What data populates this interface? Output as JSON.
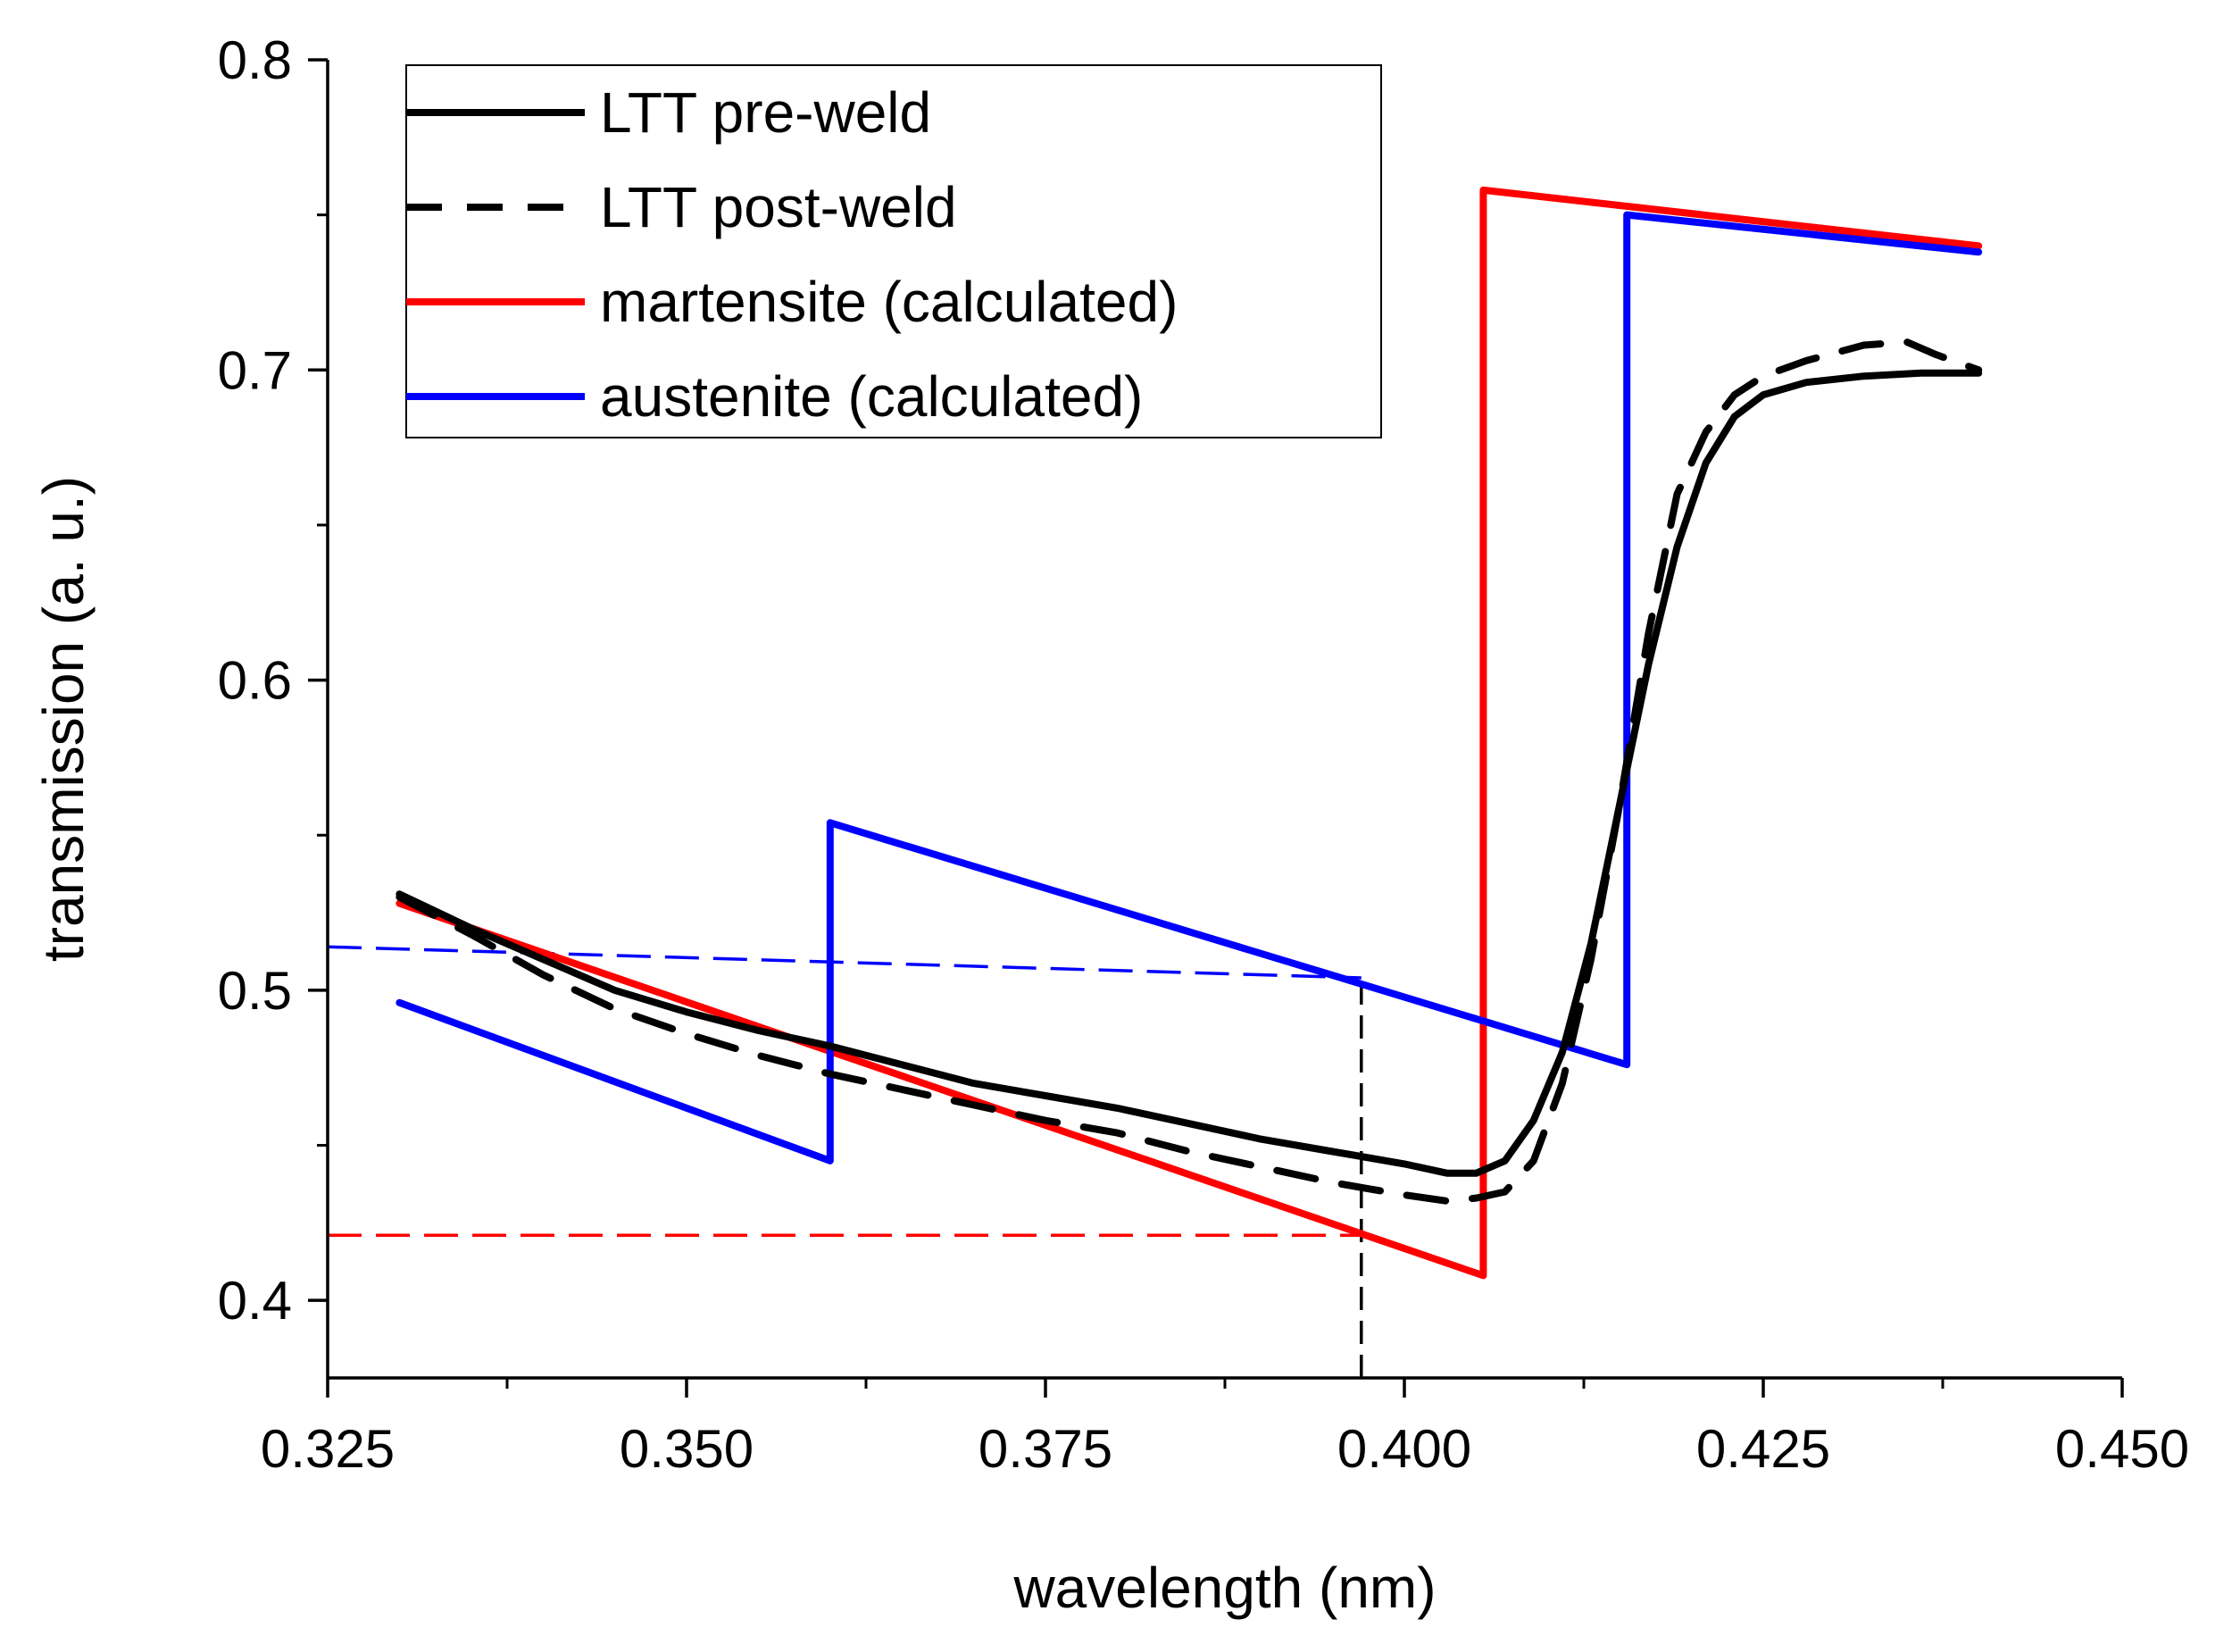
{
  "chart_data": {
    "type": "line",
    "xlabel": "wavelength (nm)",
    "ylabel": "transmission (a. u.)",
    "xlim": [
      0.325,
      0.45
    ],
    "ylim": [
      0.375,
      0.8
    ],
    "xticks": [
      0.325,
      0.35,
      0.375,
      0.4,
      0.425,
      0.45
    ],
    "xtick_labels": [
      "0.325",
      "0.350",
      "0.375",
      "0.400",
      "0.425",
      "0.450"
    ],
    "yticks": [
      0.4,
      0.5,
      0.6,
      0.7,
      0.8
    ],
    "ytick_labels": [
      "0.4",
      "0.5",
      "0.6",
      "0.7",
      "0.8"
    ],
    "legend_position": "top-left",
    "series": [
      {
        "name": "LTT pre-weld",
        "color": "#000000",
        "style": "solid",
        "x": [
          0.33,
          0.335,
          0.34,
          0.345,
          0.35,
          0.355,
          0.36,
          0.365,
          0.37,
          0.375,
          0.38,
          0.385,
          0.39,
          0.395,
          0.4,
          0.403,
          0.405,
          0.407,
          0.409,
          0.411,
          0.413,
          0.415,
          0.417,
          0.419,
          0.421,
          0.423,
          0.425,
          0.428,
          0.432,
          0.436,
          0.44
        ],
        "y": [
          0.531,
          0.52,
          0.51,
          0.5,
          0.493,
          0.487,
          0.482,
          0.476,
          0.47,
          0.466,
          0.462,
          0.457,
          0.452,
          0.448,
          0.444,
          0.441,
          0.441,
          0.445,
          0.458,
          0.48,
          0.515,
          0.56,
          0.605,
          0.643,
          0.67,
          0.685,
          0.692,
          0.696,
          0.698,
          0.699,
          0.699
        ]
      },
      {
        "name": "LTT post-weld",
        "color": "#000000",
        "style": "dashed",
        "x": [
          0.33,
          0.335,
          0.34,
          0.345,
          0.35,
          0.355,
          0.36,
          0.365,
          0.37,
          0.375,
          0.38,
          0.385,
          0.39,
          0.395,
          0.4,
          0.403,
          0.405,
          0.407,
          0.409,
          0.411,
          0.413,
          0.415,
          0.417,
          0.419,
          0.421,
          0.423,
          0.425,
          0.428,
          0.432,
          0.435,
          0.437,
          0.44
        ],
        "y": [
          0.53,
          0.518,
          0.505,
          0.494,
          0.486,
          0.479,
          0.473,
          0.468,
          0.463,
          0.458,
          0.454,
          0.448,
          0.443,
          0.438,
          0.434,
          0.432,
          0.433,
          0.435,
          0.445,
          0.47,
          0.51,
          0.56,
          0.615,
          0.66,
          0.68,
          0.692,
          0.698,
          0.703,
          0.708,
          0.709,
          0.705,
          0.7
        ]
      },
      {
        "name": "martensite (calculated)",
        "color": "#ff0000",
        "style": "solid",
        "x": [
          0.33,
          0.4055,
          0.4055,
          0.44
        ],
        "y": [
          0.528,
          0.408,
          0.758,
          0.74
        ]
      },
      {
        "name": "austenite (calculated)",
        "color": "#0000ff",
        "style": "solid",
        "x": [
          0.33,
          0.36,
          0.36,
          0.4155,
          0.4155,
          0.44
        ],
        "y": [
          0.496,
          0.445,
          0.554,
          0.476,
          0.75,
          0.738
        ]
      }
    ],
    "reference_lines": [
      {
        "name": "austenite-reference",
        "color": "#0000ff",
        "style": "dashed",
        "x": [
          0.325,
          0.397
        ],
        "y": [
          0.514,
          0.504
        ]
      },
      {
        "name": "martensite-reference",
        "color": "#ff0000",
        "style": "dashed",
        "x": [
          0.325,
          0.397
        ],
        "y": [
          0.421,
          0.421
        ]
      },
      {
        "name": "wavelength-marker",
        "color": "#000000",
        "style": "dashed",
        "x": [
          0.397,
          0.397
        ],
        "y": [
          0.375,
          0.502
        ]
      }
    ]
  }
}
